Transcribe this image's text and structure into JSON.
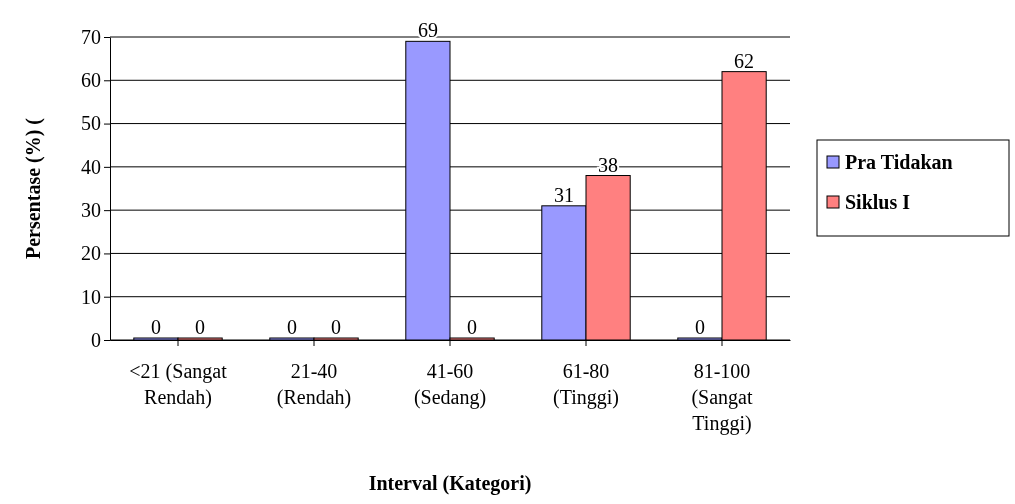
{
  "chart_data": {
    "type": "bar",
    "xlabel": "Interval (Kategori)",
    "ylabel": "Persentase (%) (",
    "categories": [
      "<21 (Sangat Rendah)",
      "21-40 (Rendah)",
      "41-60 (Sedang)",
      "61-80 (Tinggi)",
      "81-100 (Sangat Tinggi)"
    ],
    "series": [
      {
        "name": "Pra Tidakan",
        "color": "#9999ff",
        "values": [
          0,
          0,
          69,
          31,
          0
        ]
      },
      {
        "name": "Siklus I",
        "color": "#ff8080",
        "values": [
          0,
          0,
          0,
          38,
          62
        ]
      }
    ],
    "ylim": [
      0,
      70
    ],
    "yticks": [
      0,
      10,
      20,
      30,
      40,
      50,
      60,
      70
    ],
    "grid": "y",
    "legend": "right",
    "data_labels": true
  }
}
